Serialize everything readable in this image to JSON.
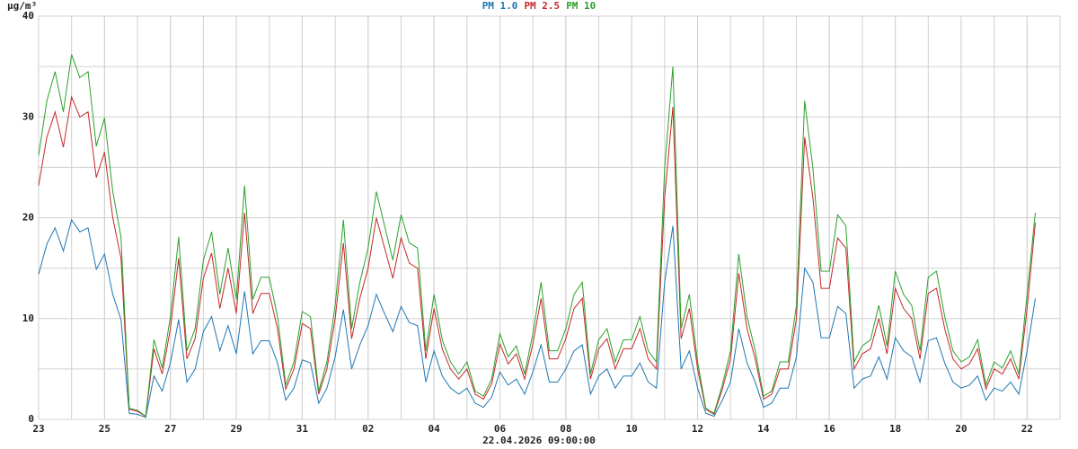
{
  "chart_data": {
    "type": "line",
    "y_label": "µg/m³",
    "x_label": "22.04.2026 09:00:00",
    "x": [
      0,
      0.25,
      0.5,
      0.75,
      1,
      1.25,
      1.5,
      1.75,
      2,
      2.25,
      2.5,
      2.75,
      3,
      3.25,
      3.5,
      3.75,
      4,
      4.25,
      4.5,
      4.75,
      5,
      5.25,
      5.5,
      5.75,
      6,
      6.25,
      6.5,
      6.75,
      7,
      7.25,
      7.5,
      7.75,
      8,
      8.25,
      8.5,
      8.75,
      9,
      9.25,
      9.5,
      9.75,
      10,
      10.25,
      10.5,
      10.75,
      11,
      11.25,
      11.5,
      11.75,
      12,
      12.25,
      12.5,
      12.75,
      13,
      13.25,
      13.5,
      13.75,
      14,
      14.25,
      14.5,
      14.75,
      15,
      15.25,
      15.5,
      15.75,
      16,
      16.25,
      16.5,
      16.75,
      17,
      17.25,
      17.5,
      17.75,
      18,
      18.25,
      18.5,
      18.75,
      19,
      19.25,
      19.5,
      19.75,
      20,
      20.25,
      20.5,
      20.75,
      21,
      21.25,
      21.5,
      21.75,
      22,
      22.25,
      22.5,
      22.75,
      23,
      23.25,
      23.5,
      23.75,
      24,
      24.25,
      24.5,
      24.75,
      25,
      25.25,
      25.5,
      25.75,
      26,
      26.25,
      26.5,
      26.75,
      27,
      27.25,
      27.5,
      27.75,
      28,
      28.25,
      28.5,
      28.75,
      29,
      29.25,
      29.5,
      29.75,
      30,
      30.25
    ],
    "series": [
      {
        "name": "PM 1.0",
        "color": "#1f77b4",
        "values": [
          14.4,
          17.4,
          19,
          16.7,
          19.8,
          18.6,
          19,
          14.9,
          16.4,
          12.4,
          9.9,
          0.6,
          0.5,
          0.2,
          4.3,
          2.8,
          5.6,
          9.9,
          3.7,
          5,
          8.7,
          10.2,
          6.8,
          9.3,
          6.5,
          12.7,
          6.5,
          7.8,
          7.8,
          5.6,
          1.9,
          3.1,
          5.9,
          5.6,
          1.6,
          3.1,
          6.2,
          10.9,
          5,
          7.4,
          9.3,
          12.4,
          10.5,
          8.7,
          11.2,
          9.6,
          9.3,
          3.7,
          6.8,
          4.3,
          3.1,
          2.5,
          3.1,
          1.6,
          1.2,
          2.2,
          4.7,
          3.4,
          4,
          2.5,
          4.7,
          7.4,
          3.7,
          3.7,
          5,
          6.8,
          7.4,
          2.5,
          4.3,
          5,
          3.1,
          4.3,
          4.3,
          5.6,
          3.7,
          3.1,
          13.6,
          19.2,
          5,
          6.8,
          3.1,
          0.6,
          0.3,
          1.9,
          3.7,
          9,
          5.6,
          3.7,
          1.2,
          1.6,
          3.1,
          3.1,
          6.2,
          15,
          13.6,
          8.1,
          8.1,
          11.2,
          10.5,
          3.1,
          4,
          4.3,
          6.2,
          4,
          8.1,
          6.8,
          6.2,
          3.7,
          7.8,
          8.1,
          5.6,
          3.7,
          3.1,
          3.4,
          4.3,
          1.9,
          3.1,
          2.8,
          3.7,
          2.5,
          6.8,
          12
        ]
      },
      {
        "name": "PM 2.5",
        "color": "#c62828",
        "values": [
          23.2,
          28,
          30.5,
          27,
          32,
          30,
          30.5,
          24,
          26.5,
          20,
          16,
          1,
          0.8,
          0.3,
          7,
          4.5,
          9,
          16,
          6,
          8,
          14,
          16.5,
          11,
          15,
          10.5,
          20.5,
          10.5,
          12.5,
          12.5,
          9,
          3,
          5,
          9.5,
          9,
          2.5,
          5,
          10,
          17.5,
          8,
          12,
          15,
          20,
          17,
          14,
          18,
          15.5,
          15,
          6,
          11,
          7,
          5,
          4,
          5,
          2.5,
          2,
          3.5,
          7.5,
          5.5,
          6.5,
          4,
          7.5,
          12,
          6,
          6,
          8,
          11,
          12,
          4,
          7,
          8,
          5,
          7,
          7,
          9,
          6,
          5,
          22,
          31,
          8,
          11,
          5,
          1,
          0.5,
          3,
          6,
          14.5,
          9,
          6,
          2,
          2.5,
          5,
          5,
          10,
          28,
          22,
          13,
          13,
          18,
          17,
          5,
          6.5,
          7,
          10,
          6.5,
          13,
          11,
          10,
          6,
          12.5,
          13,
          9,
          6,
          5,
          5.5,
          7,
          3,
          5,
          4.5,
          6,
          4,
          11,
          19.5
        ]
      },
      {
        "name": "PM 10",
        "color": "#2ca02c",
        "values": [
          26.2,
          31.6,
          34.5,
          30.5,
          36.2,
          33.9,
          34.5,
          27.1,
          29.9,
          22.6,
          18.1,
          1.1,
          0.9,
          0.3,
          7.9,
          5.1,
          10.2,
          18.1,
          6.8,
          9,
          15.8,
          18.6,
          12.4,
          17,
          11.9,
          23.2,
          11.9,
          14.1,
          14.1,
          10.2,
          3.4,
          5.7,
          10.7,
          10.2,
          2.8,
          5.7,
          11.3,
          19.8,
          9,
          13.6,
          17,
          22.6,
          19.2,
          15.8,
          20.3,
          17.5,
          17,
          6.8,
          12.4,
          7.9,
          5.7,
          4.5,
          5.7,
          2.8,
          2.3,
          4,
          8.5,
          6.2,
          7.3,
          4.5,
          8.5,
          13.6,
          6.8,
          6.8,
          9,
          12.4,
          13.6,
          4.5,
          7.9,
          9,
          5.7,
          7.9,
          7.9,
          10.2,
          6.8,
          5.7,
          24.9,
          35,
          9,
          12.4,
          5.7,
          1.1,
          0.6,
          3.4,
          6.8,
          16.4,
          10.2,
          6.8,
          2.3,
          2.8,
          5.7,
          5.7,
          11.3,
          31.6,
          24.9,
          14.7,
          14.7,
          20.3,
          19.2,
          5.7,
          7.3,
          7.9,
          11.3,
          7.3,
          14.7,
          12.4,
          11.3,
          6.8,
          14.1,
          14.7,
          10.2,
          6.8,
          5.7,
          6.2,
          7.9,
          3.4,
          5.7,
          5.1,
          6.8,
          4.5,
          12.4,
          20.5
        ]
      }
    ],
    "xlim": [
      0,
      31
    ],
    "xticks": [
      {
        "value": 0,
        "label": "23"
      },
      {
        "value": 2,
        "label": "25"
      },
      {
        "value": 4,
        "label": "27"
      },
      {
        "value": 6,
        "label": "29"
      },
      {
        "value": 8,
        "label": "31"
      },
      {
        "value": 10,
        "label": "02"
      },
      {
        "value": 12,
        "label": "04"
      },
      {
        "value": 14,
        "label": "06"
      },
      {
        "value": 16,
        "label": "08"
      },
      {
        "value": 18,
        "label": "10"
      },
      {
        "value": 20,
        "label": "12"
      },
      {
        "value": 22,
        "label": "14"
      },
      {
        "value": 24,
        "label": "16"
      },
      {
        "value": 26,
        "label": "18"
      },
      {
        "value": 28,
        "label": "20"
      },
      {
        "value": 30,
        "label": "22"
      }
    ],
    "ylim": [
      0,
      40
    ],
    "yticks": [
      0,
      10,
      20,
      30,
      40
    ],
    "grid": true,
    "legend": "top"
  }
}
